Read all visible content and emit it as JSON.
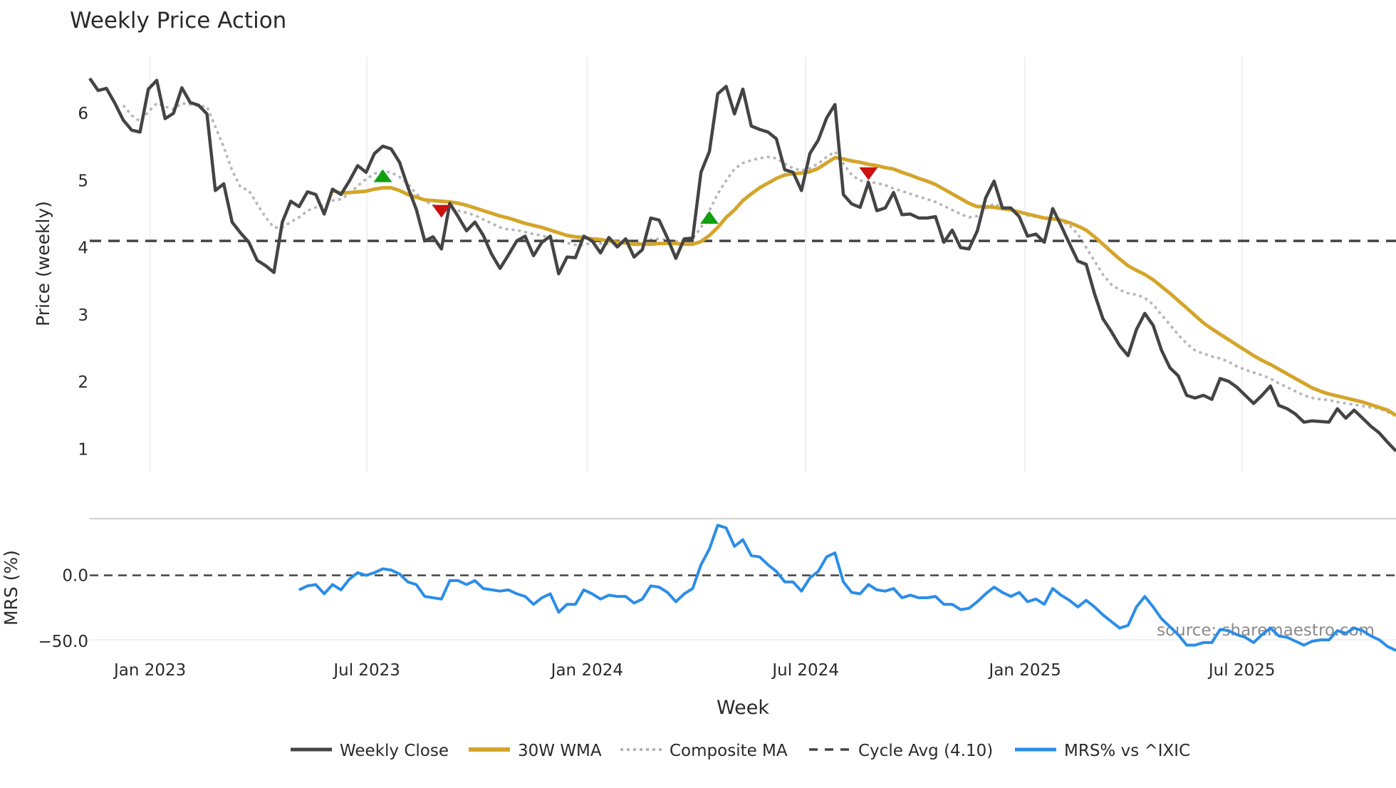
{
  "chart_data": [
    {
      "type": "line",
      "title": "Weekly Price Action",
      "xlabel": "Week",
      "ylabel": "Price (weekly)",
      "x_unit": "weeks since first plotted week",
      "xlim": [
        0,
        156
      ],
      "ylim": [
        0.7,
        6.85
      ],
      "yticks": [
        1,
        2,
        3,
        4,
        5,
        6
      ],
      "xticks": [
        {
          "week": 7.2,
          "label": "Jan 2023"
        },
        {
          "week": 33.1,
          "label": "Jul 2023"
        },
        {
          "week": 59.4,
          "label": "Jan 2024"
        },
        {
          "week": 85.5,
          "label": "Jul 2024"
        },
        {
          "week": 111.7,
          "label": "Jan 2025"
        },
        {
          "week": 137.6,
          "label": "Jul 2025"
        }
      ],
      "grid": "vertical",
      "series": [
        {
          "name": "Weekly Close",
          "color": "#444444",
          "start_week": 0,
          "values": [
            6.52,
            6.34,
            6.37,
            6.15,
            5.9,
            5.75,
            5.72,
            6.36,
            6.49,
            5.92,
            6.0,
            6.38,
            6.16,
            6.12,
            5.99,
            4.85,
            4.95,
            4.38,
            4.22,
            4.08,
            3.81,
            3.73,
            3.63,
            4.38,
            4.69,
            4.61,
            4.83,
            4.79,
            4.5,
            4.87,
            4.79,
            4.99,
            5.22,
            5.12,
            5.4,
            5.51,
            5.47,
            5.27,
            4.9,
            4.57,
            4.1,
            4.16,
            3.98,
            4.66,
            4.46,
            4.25,
            4.38,
            4.18,
            3.9,
            3.69,
            3.89,
            4.1,
            4.17,
            3.88,
            4.08,
            4.17,
            3.61,
            3.86,
            3.85,
            4.17,
            4.1,
            3.92,
            4.15,
            4.01,
            4.13,
            3.86,
            3.97,
            4.44,
            4.41,
            4.14,
            3.84,
            4.13,
            4.14,
            5.12,
            5.43,
            6.29,
            6.4,
            5.99,
            6.36,
            5.81,
            5.76,
            5.72,
            5.62,
            5.16,
            5.12,
            4.85,
            5.4,
            5.6,
            5.93,
            6.13,
            4.79,
            4.65,
            4.6,
            4.97,
            4.55,
            4.59,
            4.82,
            4.49,
            4.5,
            4.44,
            4.44,
            4.46,
            4.08,
            4.26,
            4.0,
            3.98,
            4.25,
            4.74,
            4.99,
            4.59,
            4.59,
            4.46,
            4.17,
            4.2,
            4.08,
            4.58,
            4.33,
            4.06,
            3.8,
            3.75,
            3.31,
            2.94,
            2.75,
            2.54,
            2.39,
            2.78,
            3.02,
            2.84,
            2.47,
            2.21,
            2.09,
            1.8,
            1.76,
            1.8,
            1.74,
            2.05,
            2.01,
            1.92,
            1.8,
            1.68,
            1.8,
            1.94,
            1.65,
            1.6,
            1.52,
            1.4,
            1.42,
            1.41,
            1.4,
            1.6,
            1.46,
            1.58,
            1.46,
            1.34,
            1.24,
            1.1,
            0.97
          ]
        },
        {
          "name": "30W WMA",
          "color": "#d4a52a",
          "start_week": 29,
          "values": [
            4.85,
            4.81,
            4.82,
            4.83,
            4.84,
            4.87,
            4.89,
            4.89,
            4.85,
            4.79,
            4.75,
            4.71,
            4.7,
            4.69,
            4.68,
            4.66,
            4.63,
            4.59,
            4.55,
            4.51,
            4.47,
            4.44,
            4.4,
            4.36,
            4.33,
            4.3,
            4.26,
            4.22,
            4.18,
            4.16,
            4.15,
            4.13,
            4.12,
            4.1,
            4.08,
            4.07,
            4.05,
            4.05,
            4.05,
            4.06,
            4.06,
            4.06,
            4.05,
            4.05,
            4.09,
            4.18,
            4.3,
            4.45,
            4.56,
            4.7,
            4.8,
            4.89,
            4.96,
            5.03,
            5.08,
            5.1,
            5.11,
            5.13,
            5.18,
            5.26,
            5.34,
            5.32,
            5.29,
            5.27,
            5.24,
            5.22,
            5.19,
            5.17,
            5.12,
            5.08,
            5.03,
            4.99,
            4.94,
            4.87,
            4.8,
            4.73,
            4.66,
            4.61,
            4.61,
            4.6,
            4.58,
            4.56,
            4.53,
            4.5,
            4.47,
            4.44,
            4.43,
            4.41,
            4.37,
            4.32,
            4.26,
            4.16,
            4.05,
            3.94,
            3.83,
            3.73,
            3.66,
            3.6,
            3.52,
            3.42,
            3.32,
            3.21,
            3.1,
            2.99,
            2.88,
            2.79,
            2.71,
            2.63,
            2.55,
            2.47,
            2.39,
            2.32,
            2.26,
            2.19,
            2.12,
            2.05,
            1.98,
            1.91,
            1.86,
            1.82,
            1.79,
            1.76,
            1.73,
            1.7,
            1.66,
            1.62,
            1.58,
            1.5
          ]
        },
        {
          "name": "Composite MA",
          "color": "#b5b5b5",
          "start_week": 4,
          "values": [
            6.12,
            5.97,
            5.88,
            6.02,
            6.15,
            6.1,
            6.06,
            6.15,
            6.13,
            6.11,
            6.1,
            5.8,
            5.5,
            5.15,
            4.9,
            4.85,
            4.65,
            4.45,
            4.3,
            4.3,
            4.38,
            4.45,
            4.55,
            4.6,
            4.63,
            4.7,
            4.72,
            4.8,
            4.92,
            5.02,
            5.1,
            5.13,
            5.12,
            5.05,
            4.95,
            4.8,
            4.7,
            4.63,
            4.6,
            4.58,
            4.55,
            4.52,
            4.48,
            4.42,
            4.36,
            4.3,
            4.27,
            4.26,
            4.23,
            4.2,
            4.18,
            4.15,
            4.1,
            4.07,
            4.04,
            4.04,
            4.07,
            4.06,
            4.05,
            4.07,
            4.06,
            4.05,
            4.08,
            4.12,
            4.13,
            4.11,
            4.09,
            4.1,
            4.13,
            4.3,
            4.55,
            4.8,
            5.0,
            5.17,
            5.26,
            5.3,
            5.33,
            5.35,
            5.33,
            5.25,
            5.18,
            5.15,
            5.18,
            5.25,
            5.35,
            5.43,
            5.25,
            5.08,
            5.0,
            4.98,
            4.96,
            4.93,
            4.88,
            4.84,
            4.8,
            4.76,
            4.72,
            4.68,
            4.62,
            4.56,
            4.5,
            4.45,
            4.47,
            4.58,
            4.65,
            4.6,
            4.56,
            4.53,
            4.48,
            4.46,
            4.43,
            4.42,
            4.4,
            4.33,
            4.2,
            4.0,
            3.8,
            3.6,
            3.45,
            3.37,
            3.32,
            3.3,
            3.25,
            3.15,
            3.0,
            2.85,
            2.7,
            2.57,
            2.47,
            2.42,
            2.38,
            2.35,
            2.3,
            2.23,
            2.18,
            2.14,
            2.1,
            2.05,
            1.98,
            1.92,
            1.86,
            1.8,
            1.76,
            1.74,
            1.73,
            1.7,
            1.68,
            1.66,
            1.64,
            1.62,
            1.6,
            1.55,
            1.5
          ]
        },
        {
          "name": "Cycle Avg (4.10)",
          "color": "#444444",
          "constant": 4.1
        }
      ],
      "signals": [
        {
          "type": "buy",
          "week": 35,
          "value": 5.07,
          "color": "#12a012"
        },
        {
          "type": "sell",
          "week": 42,
          "value": 4.54,
          "color": "#cc1111"
        },
        {
          "type": "buy",
          "week": 74,
          "value": 4.45,
          "color": "#12a012"
        },
        {
          "type": "sell",
          "week": 93,
          "value": 5.1,
          "color": "#cc1111"
        }
      ]
    },
    {
      "type": "line",
      "ylabel": "MRS (%)",
      "ylim": [
        -60,
        43
      ],
      "yticks": [
        {
          "value": 0,
          "label": "0.0"
        },
        {
          "value": -50,
          "label": "−50.0"
        }
      ],
      "reference_line": 0,
      "series": [
        {
          "name": "MRS% vs ^IXIC",
          "color": "#2b8de8",
          "start_week": 25,
          "values": [
            -11,
            -8,
            -7,
            -14,
            -7,
            -11,
            -3,
            2,
            0,
            2,
            5,
            4,
            1,
            -5,
            -7,
            -16,
            -17,
            -18,
            -4,
            -4,
            -7,
            -4,
            -10,
            -11,
            -12,
            -11,
            -14,
            -16,
            -22,
            -17,
            -14,
            -28,
            -22,
            -22,
            -11,
            -14,
            -18,
            -15,
            -16,
            -16,
            -21,
            -18,
            -8,
            -9,
            -13,
            -20,
            -14,
            -10,
            8,
            20,
            38,
            36,
            22,
            27,
            15,
            14,
            8,
            3,
            -5,
            -5,
            -12,
            -2,
            3,
            14,
            17,
            -5,
            -13,
            -14,
            -7,
            -11,
            -12,
            -10,
            -17,
            -15,
            -17,
            -17,
            -16,
            -22,
            -22,
            -26,
            -25,
            -20,
            -14,
            -9,
            -13,
            -16,
            -13,
            -20,
            -18,
            -22,
            -10,
            -15,
            -19,
            -24,
            -19,
            -24,
            -30,
            -35,
            -40,
            -38,
            -24,
            -16,
            -24,
            -33,
            -39,
            -45,
            -53,
            -53,
            -51,
            -51,
            -41,
            -42,
            -45,
            -47,
            -51,
            -45,
            -40,
            -46,
            -47,
            -50,
            -53,
            -50,
            -49,
            -49,
            -42,
            -44,
            -40,
            -42,
            -46,
            -49,
            -54,
            -57
          ]
        }
      ],
      "annotation": "source: sharemaestro.com"
    }
  ],
  "legend": {
    "placement": "bottom-center",
    "items": [
      "Weekly Close",
      "30W WMA",
      "Composite MA",
      "Cycle Avg (4.10)",
      "MRS% vs ^IXIC"
    ]
  }
}
